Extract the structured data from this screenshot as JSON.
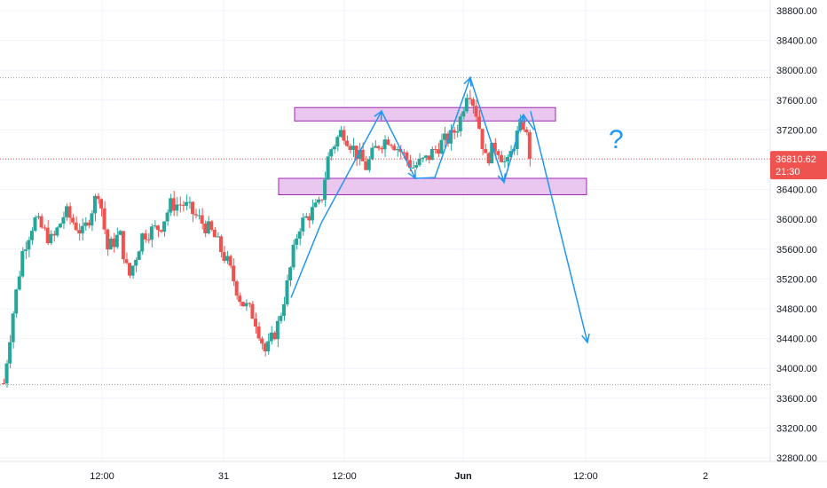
{
  "chart_data": {
    "type": "candlestick",
    "y_axis": {
      "ticks": [
        32800,
        33200,
        33600,
        34000,
        34400,
        34800,
        35200,
        35600,
        36000,
        36400,
        36800,
        37200,
        37600,
        38000,
        38400,
        38800
      ],
      "tick_labels": [
        "32800.00",
        "33200.00",
        "33600.00",
        "34000.00",
        "34400.00",
        "34800.00",
        "35200.00",
        "35600.00",
        "36000.00",
        "36400.00",
        "36800.00",
        "37200.00",
        "37600.00",
        "38000.00",
        "38400.00",
        "38800.00"
      ],
      "range": [
        32750,
        38900
      ],
      "side": "right"
    },
    "x_axis": {
      "tick_labels": [
        "12:00",
        "31",
        "12:00",
        "Jun",
        "12:00",
        "2"
      ],
      "bold_labels": [
        "Jun"
      ]
    },
    "current_price": {
      "value": 36810.62,
      "label": "36810.62",
      "countdown": "21:30",
      "color": "#ef5350"
    },
    "reference_lines": [
      {
        "price": 37900,
        "style": "dotted",
        "color": "#9e9e9e"
      },
      {
        "price": 33780,
        "style": "dotted",
        "color": "#9e9e9e"
      }
    ],
    "zones": [
      {
        "name": "resistance",
        "low": 37320,
        "high": 37500,
        "fill": "#e9c7ef",
        "stroke": "#9c27b0"
      },
      {
        "name": "support",
        "low": 36330,
        "high": 36550,
        "fill": "#e9c7ef",
        "stroke": "#9c27b0"
      }
    ],
    "annotation_text": "?",
    "colors": {
      "up": "#26a69a",
      "down": "#ef5350",
      "arrow": "#2196f3",
      "grid": "#f0f3fa"
    },
    "candles_summary": {
      "start_price": 33800,
      "path": [
        [
          0,
          33800
        ],
        [
          10,
          34700
        ],
        [
          22,
          35600
        ],
        [
          35,
          36000
        ],
        [
          55,
          35700
        ],
        [
          70,
          36100
        ],
        [
          90,
          35800
        ],
        [
          108,
          36400
        ],
        [
          118,
          35600
        ],
        [
          132,
          35800
        ],
        [
          142,
          35200
        ],
        [
          158,
          35800
        ],
        [
          178,
          35900
        ],
        [
          190,
          36200
        ],
        [
          205,
          36200
        ],
        [
          222,
          36000
        ],
        [
          238,
          35800
        ],
        [
          255,
          35400
        ],
        [
          270,
          34900
        ],
        [
          285,
          34700
        ],
        [
          298,
          34200
        ],
        [
          312,
          34600
        ],
        [
          322,
          35100
        ],
        [
          335,
          35900
        ],
        [
          350,
          36100
        ],
        [
          360,
          36200
        ],
        [
          370,
          36900
        ],
        [
          385,
          37200
        ],
        [
          400,
          36900
        ],
        [
          412,
          36700
        ],
        [
          425,
          37000
        ],
        [
          438,
          37100
        ],
        [
          452,
          36900
        ],
        [
          465,
          36700
        ],
        [
          480,
          36800
        ],
        [
          495,
          37000
        ],
        [
          508,
          37100
        ],
        [
          518,
          37300
        ],
        [
          528,
          37800
        ],
        [
          538,
          37400
        ],
        [
          548,
          36800
        ],
        [
          560,
          37000
        ],
        [
          572,
          36700
        ],
        [
          582,
          37100
        ],
        [
          592,
          37300
        ],
        [
          598,
          36810.62
        ]
      ]
    }
  }
}
